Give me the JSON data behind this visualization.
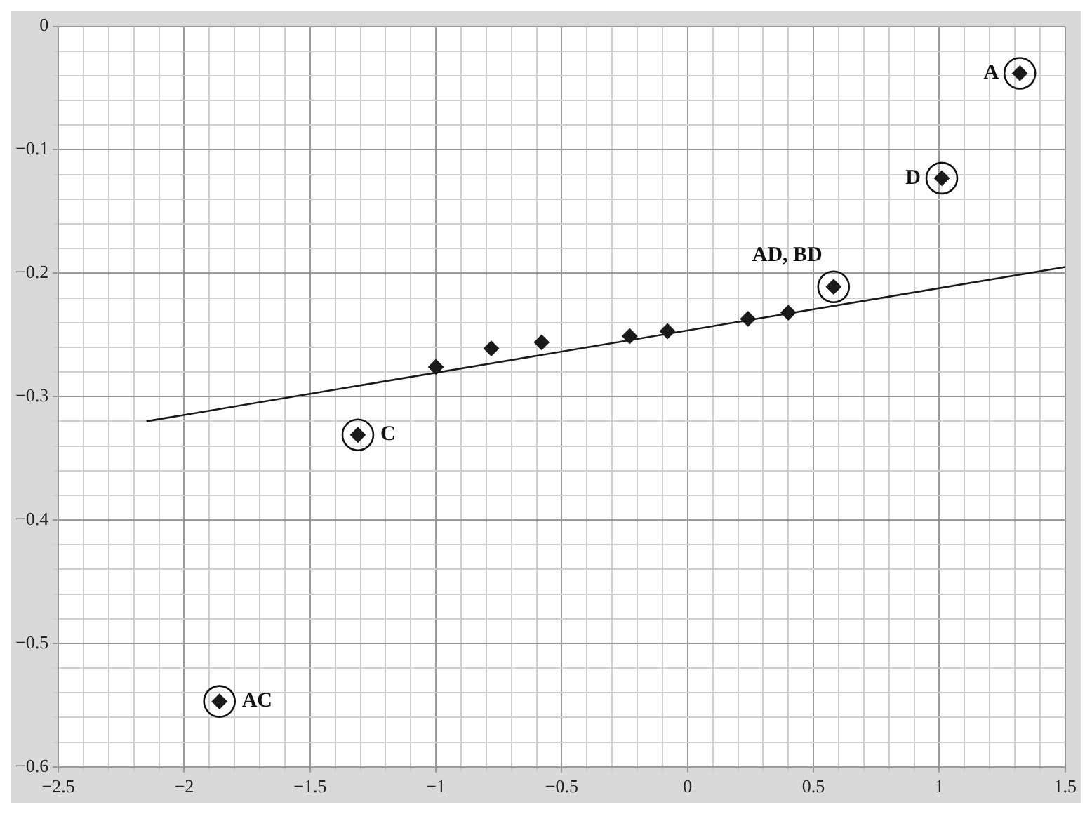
{
  "chart_data": {
    "type": "scatter",
    "grid": true,
    "xlim": [
      -2.5,
      1.5
    ],
    "ylim": [
      -0.6,
      0
    ],
    "xticks": [
      -2.5,
      -2,
      -1.5,
      -1,
      -0.5,
      0,
      0.5,
      1,
      1.5
    ],
    "yticks": [
      -0.6,
      -0.5,
      -0.4,
      -0.3,
      -0.2,
      -0.1,
      0
    ],
    "series": [
      {
        "marker": "diamond",
        "color": "#1a1a1a",
        "x": [
          1.32,
          1.01,
          0.58,
          -1.31,
          -1.86,
          -1.0,
          -0.78,
          -0.58,
          -0.23,
          -0.08,
          0.24,
          0.4
        ],
        "values": [
          -0.038,
          -0.123,
          -0.211,
          -0.331,
          -0.547,
          -0.276,
          -0.261,
          -0.256,
          -0.251,
          -0.247,
          -0.237,
          -0.232
        ]
      },
      {
        "type": "line",
        "marker": "none",
        "line_style": "solid",
        "color": "#1a1a1a",
        "x": [
          -2.15,
          1.5
        ],
        "values": [
          -0.32,
          -0.195
        ]
      }
    ],
    "annotations": [
      {
        "text": "A",
        "x": 1.32,
        "y": -0.038
      },
      {
        "text": "D",
        "x": 1.01,
        "y": -0.123
      },
      {
        "text": "AD, BD",
        "x": 0.58,
        "y": -0.211
      },
      {
        "text": "C",
        "x": -1.31,
        "y": -0.331
      },
      {
        "text": "AC",
        "x": -1.86,
        "y": -0.547
      }
    ]
  }
}
